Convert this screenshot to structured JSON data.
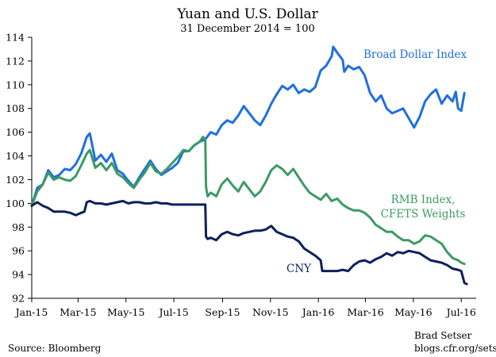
{
  "chart_data": {
    "type": "line",
    "title": "Yuan and U.S. Dollar",
    "subtitle": "31 December 2014 = 100",
    "xlabel": "",
    "ylabel": "",
    "ylim": [
      92,
      114
    ],
    "yticks": [
      92,
      94,
      96,
      98,
      100,
      102,
      104,
      106,
      108,
      110,
      112,
      114
    ],
    "xlim": [
      "2015-01-01",
      "2016-07-20"
    ],
    "xticks": [
      {
        "date": "2015-01-01",
        "label": "Jan-15"
      },
      {
        "date": "2015-03-01",
        "label": "Mar-15"
      },
      {
        "date": "2015-05-01",
        "label": "May-15"
      },
      {
        "date": "2015-07-01",
        "label": "Jul-15"
      },
      {
        "date": "2015-09-01",
        "label": "Sep-15"
      },
      {
        "date": "2015-11-01",
        "label": "Nov-15"
      },
      {
        "date": "2016-01-01",
        "label": "Jan-16"
      },
      {
        "date": "2016-03-01",
        "label": "Mar-16"
      },
      {
        "date": "2016-05-01",
        "label": "May-16"
      },
      {
        "date": "2016-07-01",
        "label": "Jul-16"
      }
    ],
    "grid": false,
    "series": [
      {
        "name": "Broad Dollar Index",
        "color": "#1f6fe0",
        "points": [
          [
            "2015-01-01",
            99.8
          ],
          [
            "2015-01-08",
            101.3
          ],
          [
            "2015-01-15",
            101.6
          ],
          [
            "2015-01-22",
            102.8
          ],
          [
            "2015-01-29",
            102.2
          ],
          [
            "2015-02-05",
            102.4
          ],
          [
            "2015-02-12",
            102.9
          ],
          [
            "2015-02-19",
            102.8
          ],
          [
            "2015-02-26",
            103.3
          ],
          [
            "2015-03-05",
            104.2
          ],
          [
            "2015-03-12",
            105.6
          ],
          [
            "2015-03-16",
            105.9
          ],
          [
            "2015-03-23",
            103.6
          ],
          [
            "2015-03-30",
            104.1
          ],
          [
            "2015-04-06",
            103.5
          ],
          [
            "2015-04-13",
            104.2
          ],
          [
            "2015-04-20",
            102.8
          ],
          [
            "2015-04-27",
            102.5
          ],
          [
            "2015-05-04",
            101.9
          ],
          [
            "2015-05-11",
            101.4
          ],
          [
            "2015-05-18",
            102.2
          ],
          [
            "2015-05-25",
            102.9
          ],
          [
            "2015-06-01",
            103.6
          ],
          [
            "2015-06-08",
            102.9
          ],
          [
            "2015-06-15",
            102.4
          ],
          [
            "2015-06-22",
            102.7
          ],
          [
            "2015-06-29",
            103.0
          ],
          [
            "2015-07-06",
            103.4
          ],
          [
            "2015-07-13",
            104.4
          ],
          [
            "2015-07-20",
            104.4
          ],
          [
            "2015-07-27",
            104.9
          ],
          [
            "2015-08-03",
            105.2
          ],
          [
            "2015-08-10",
            105.4
          ],
          [
            "2015-08-17",
            106.0
          ],
          [
            "2015-08-24",
            105.8
          ],
          [
            "2015-08-31",
            106.6
          ],
          [
            "2015-09-07",
            107.0
          ],
          [
            "2015-09-14",
            106.8
          ],
          [
            "2015-09-21",
            107.4
          ],
          [
            "2015-09-28",
            108.2
          ],
          [
            "2015-10-05",
            107.6
          ],
          [
            "2015-10-12",
            107.0
          ],
          [
            "2015-10-19",
            106.6
          ],
          [
            "2015-10-26",
            107.4
          ],
          [
            "2015-11-02",
            108.4
          ],
          [
            "2015-11-09",
            109.2
          ],
          [
            "2015-11-16",
            109.9
          ],
          [
            "2015-11-23",
            109.6
          ],
          [
            "2015-11-30",
            110.0
          ],
          [
            "2015-12-07",
            109.3
          ],
          [
            "2015-12-14",
            109.6
          ],
          [
            "2015-12-21",
            109.4
          ],
          [
            "2015-12-28",
            109.8
          ],
          [
            "2016-01-04",
            111.2
          ],
          [
            "2016-01-11",
            111.6
          ],
          [
            "2016-01-18",
            112.4
          ],
          [
            "2016-01-20",
            113.2
          ],
          [
            "2016-01-25",
            112.7
          ],
          [
            "2016-02-01",
            112.1
          ],
          [
            "2016-02-03",
            111.1
          ],
          [
            "2016-02-08",
            111.6
          ],
          [
            "2016-02-15",
            111.3
          ],
          [
            "2016-02-22",
            111.5
          ],
          [
            "2016-02-29",
            110.8
          ],
          [
            "2016-03-07",
            109.3
          ],
          [
            "2016-03-14",
            108.6
          ],
          [
            "2016-03-21",
            109.1
          ],
          [
            "2016-03-28",
            108.0
          ],
          [
            "2016-04-04",
            107.6
          ],
          [
            "2016-04-11",
            107.8
          ],
          [
            "2016-04-18",
            108.0
          ],
          [
            "2016-04-25",
            107.2
          ],
          [
            "2016-05-02",
            106.4
          ],
          [
            "2016-05-09",
            107.3
          ],
          [
            "2016-05-16",
            108.6
          ],
          [
            "2016-05-23",
            109.2
          ],
          [
            "2016-05-30",
            109.6
          ],
          [
            "2016-06-06",
            108.4
          ],
          [
            "2016-06-13",
            109.1
          ],
          [
            "2016-06-20",
            108.6
          ],
          [
            "2016-06-24",
            109.4
          ],
          [
            "2016-06-27",
            108.0
          ],
          [
            "2016-07-01",
            107.8
          ],
          [
            "2016-07-05",
            109.3
          ]
        ]
      },
      {
        "name": "RMB Index, CFETS Weights",
        "color": "#3c9a64",
        "points": [
          [
            "2015-01-01",
            99.8
          ],
          [
            "2015-01-08",
            101.0
          ],
          [
            "2015-01-15",
            101.6
          ],
          [
            "2015-01-22",
            102.6
          ],
          [
            "2015-01-29",
            102.0
          ],
          [
            "2015-02-05",
            102.2
          ],
          [
            "2015-02-12",
            102.0
          ],
          [
            "2015-02-19",
            101.9
          ],
          [
            "2015-02-26",
            102.3
          ],
          [
            "2015-03-05",
            103.2
          ],
          [
            "2015-03-12",
            104.2
          ],
          [
            "2015-03-16",
            104.5
          ],
          [
            "2015-03-23",
            103.0
          ],
          [
            "2015-03-30",
            103.4
          ],
          [
            "2015-04-06",
            102.8
          ],
          [
            "2015-04-13",
            103.4
          ],
          [
            "2015-04-20",
            102.5
          ],
          [
            "2015-04-27",
            102.2
          ],
          [
            "2015-05-04",
            101.7
          ],
          [
            "2015-05-11",
            101.3
          ],
          [
            "2015-05-18",
            102.0
          ],
          [
            "2015-05-25",
            102.6
          ],
          [
            "2015-06-01",
            103.4
          ],
          [
            "2015-06-08",
            102.7
          ],
          [
            "2015-06-15",
            102.5
          ],
          [
            "2015-06-22",
            102.9
          ],
          [
            "2015-06-29",
            103.4
          ],
          [
            "2015-07-06",
            103.9
          ],
          [
            "2015-07-13",
            104.5
          ],
          [
            "2015-07-20",
            104.4
          ],
          [
            "2015-07-27",
            104.9
          ],
          [
            "2015-08-03",
            105.2
          ],
          [
            "2015-08-07",
            105.6
          ],
          [
            "2015-08-10",
            105.4
          ],
          [
            "2015-08-11",
            101.4
          ],
          [
            "2015-08-13",
            100.6
          ],
          [
            "2015-08-17",
            100.9
          ],
          [
            "2015-08-24",
            100.6
          ],
          [
            "2015-08-31",
            101.6
          ],
          [
            "2015-09-07",
            102.1
          ],
          [
            "2015-09-14",
            101.5
          ],
          [
            "2015-09-21",
            101.0
          ],
          [
            "2015-09-28",
            101.8
          ],
          [
            "2015-10-05",
            101.2
          ],
          [
            "2015-10-12",
            100.6
          ],
          [
            "2015-10-19",
            101.0
          ],
          [
            "2015-10-26",
            101.8
          ],
          [
            "2015-11-02",
            102.8
          ],
          [
            "2015-11-09",
            103.2
          ],
          [
            "2015-11-16",
            102.9
          ],
          [
            "2015-11-23",
            102.4
          ],
          [
            "2015-11-30",
            102.9
          ],
          [
            "2015-12-07",
            102.2
          ],
          [
            "2015-12-14",
            101.5
          ],
          [
            "2015-12-21",
            100.9
          ],
          [
            "2015-12-28",
            100.6
          ],
          [
            "2016-01-04",
            100.3
          ],
          [
            "2016-01-11",
            100.8
          ],
          [
            "2016-01-18",
            100.2
          ],
          [
            "2016-01-25",
            100.4
          ],
          [
            "2016-02-01",
            99.9
          ],
          [
            "2016-02-08",
            99.6
          ],
          [
            "2016-02-15",
            99.4
          ],
          [
            "2016-02-22",
            99.4
          ],
          [
            "2016-02-29",
            99.2
          ],
          [
            "2016-03-07",
            98.8
          ],
          [
            "2016-03-14",
            98.2
          ],
          [
            "2016-03-21",
            97.9
          ],
          [
            "2016-03-28",
            97.6
          ],
          [
            "2016-04-04",
            97.6
          ],
          [
            "2016-04-11",
            97.2
          ],
          [
            "2016-04-18",
            96.9
          ],
          [
            "2016-04-25",
            96.9
          ],
          [
            "2016-05-02",
            96.6
          ],
          [
            "2016-05-09",
            96.8
          ],
          [
            "2016-05-16",
            97.3
          ],
          [
            "2016-05-23",
            97.2
          ],
          [
            "2016-05-30",
            96.9
          ],
          [
            "2016-06-06",
            96.6
          ],
          [
            "2016-06-13",
            95.9
          ],
          [
            "2016-06-20",
            95.4
          ],
          [
            "2016-06-27",
            95.2
          ],
          [
            "2016-07-01",
            95.0
          ],
          [
            "2016-07-05",
            94.9
          ]
        ]
      },
      {
        "name": "CNY",
        "color": "#0d1f5c",
        "points": [
          [
            "2015-01-01",
            99.8
          ],
          [
            "2015-01-08",
            100.1
          ],
          [
            "2015-01-15",
            99.8
          ],
          [
            "2015-01-22",
            99.6
          ],
          [
            "2015-01-29",
            99.3
          ],
          [
            "2015-02-05",
            99.3
          ],
          [
            "2015-02-12",
            99.3
          ],
          [
            "2015-02-19",
            99.2
          ],
          [
            "2015-02-26",
            99.0
          ],
          [
            "2015-03-05",
            99.2
          ],
          [
            "2015-03-09",
            99.3
          ],
          [
            "2015-03-12",
            100.1
          ],
          [
            "2015-03-16",
            100.2
          ],
          [
            "2015-03-23",
            100.0
          ],
          [
            "2015-03-30",
            100.0
          ],
          [
            "2015-04-06",
            99.9
          ],
          [
            "2015-04-13",
            100.0
          ],
          [
            "2015-04-20",
            100.1
          ],
          [
            "2015-04-27",
            100.2
          ],
          [
            "2015-05-04",
            100.0
          ],
          [
            "2015-05-11",
            100.1
          ],
          [
            "2015-05-18",
            100.1
          ],
          [
            "2015-05-25",
            100.0
          ],
          [
            "2015-06-01",
            100.0
          ],
          [
            "2015-06-08",
            100.1
          ],
          [
            "2015-06-15",
            100.0
          ],
          [
            "2015-06-22",
            100.0
          ],
          [
            "2015-06-29",
            99.9
          ],
          [
            "2015-07-06",
            99.9
          ],
          [
            "2015-07-13",
            99.9
          ],
          [
            "2015-07-20",
            99.9
          ],
          [
            "2015-07-27",
            99.9
          ],
          [
            "2015-08-03",
            99.9
          ],
          [
            "2015-08-10",
            99.9
          ],
          [
            "2015-08-11",
            97.2
          ],
          [
            "2015-08-13",
            97.0
          ],
          [
            "2015-08-17",
            97.1
          ],
          [
            "2015-08-24",
            96.9
          ],
          [
            "2015-08-31",
            97.4
          ],
          [
            "2015-09-07",
            97.6
          ],
          [
            "2015-09-14",
            97.4
          ],
          [
            "2015-09-21",
            97.3
          ],
          [
            "2015-09-28",
            97.5
          ],
          [
            "2015-10-05",
            97.6
          ],
          [
            "2015-10-12",
            97.7
          ],
          [
            "2015-10-19",
            97.7
          ],
          [
            "2015-10-26",
            97.8
          ],
          [
            "2015-11-02",
            98.1
          ],
          [
            "2015-11-09",
            97.6
          ],
          [
            "2015-11-16",
            97.4
          ],
          [
            "2015-11-23",
            97.2
          ],
          [
            "2015-11-30",
            97.1
          ],
          [
            "2015-12-07",
            96.8
          ],
          [
            "2015-12-14",
            96.2
          ],
          [
            "2015-12-21",
            95.9
          ],
          [
            "2015-12-28",
            95.6
          ],
          [
            "2016-01-04",
            95.2
          ],
          [
            "2016-01-06",
            94.3
          ],
          [
            "2016-01-11",
            94.3
          ],
          [
            "2016-01-18",
            94.3
          ],
          [
            "2016-01-25",
            94.3
          ],
          [
            "2016-02-01",
            94.4
          ],
          [
            "2016-02-08",
            94.3
          ],
          [
            "2016-02-15",
            94.8
          ],
          [
            "2016-02-22",
            95.1
          ],
          [
            "2016-02-29",
            95.2
          ],
          [
            "2016-03-07",
            95.0
          ],
          [
            "2016-03-14",
            95.3
          ],
          [
            "2016-03-21",
            95.5
          ],
          [
            "2016-03-28",
            95.8
          ],
          [
            "2016-04-04",
            95.6
          ],
          [
            "2016-04-11",
            95.9
          ],
          [
            "2016-04-18",
            95.8
          ],
          [
            "2016-04-25",
            96.0
          ],
          [
            "2016-05-02",
            95.9
          ],
          [
            "2016-05-09",
            95.8
          ],
          [
            "2016-05-16",
            95.5
          ],
          [
            "2016-05-23",
            95.2
          ],
          [
            "2016-05-30",
            95.1
          ],
          [
            "2016-06-06",
            95.0
          ],
          [
            "2016-06-13",
            94.8
          ],
          [
            "2016-06-20",
            94.5
          ],
          [
            "2016-06-27",
            94.4
          ],
          [
            "2016-07-01",
            94.3
          ],
          [
            "2016-07-05",
            93.3
          ],
          [
            "2016-07-08",
            93.2
          ]
        ]
      }
    ],
    "annotations": [
      {
        "text": "Broad Dollar Index",
        "series": "Broad Dollar Index"
      },
      {
        "text": "RMB Index,",
        "series": "RMB Index, CFETS Weights"
      },
      {
        "text": "CFETS Weights",
        "series": "RMB Index, CFETS Weights"
      },
      {
        "text": "CNY",
        "series": "CNY"
      }
    ],
    "source": "Source: Bloomberg",
    "credit_name": "Brad Setser",
    "credit_url": "blogs.cfr.org/setser"
  }
}
